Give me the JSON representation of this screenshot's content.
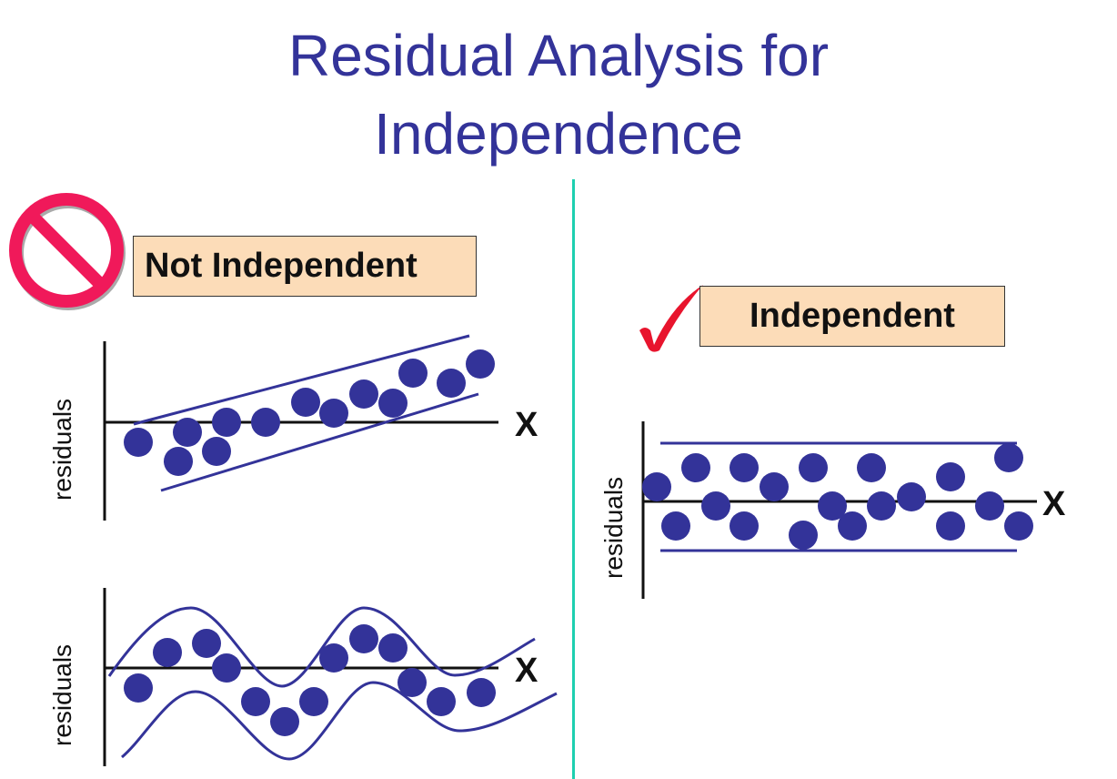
{
  "title": {
    "line1": "Residual Analysis for",
    "line2": "Independence"
  },
  "left": {
    "icon": "no-symbol-icon",
    "label": "Not Independent",
    "plot1": {
      "ylabel": "residuals",
      "xlabel": "X"
    },
    "plot2": {
      "ylabel": "residuals",
      "xlabel": "X"
    }
  },
  "right": {
    "icon": "checkmark-icon",
    "label": "Independent",
    "plot": {
      "ylabel": "residuals",
      "xlabel": "X"
    }
  },
  "colors": {
    "title": "#333399",
    "dots": "#333399",
    "box": "#fcdcb8",
    "no_symbol": "#f0195a",
    "check": "#e8142d",
    "divider": "#1ecfb0"
  }
}
